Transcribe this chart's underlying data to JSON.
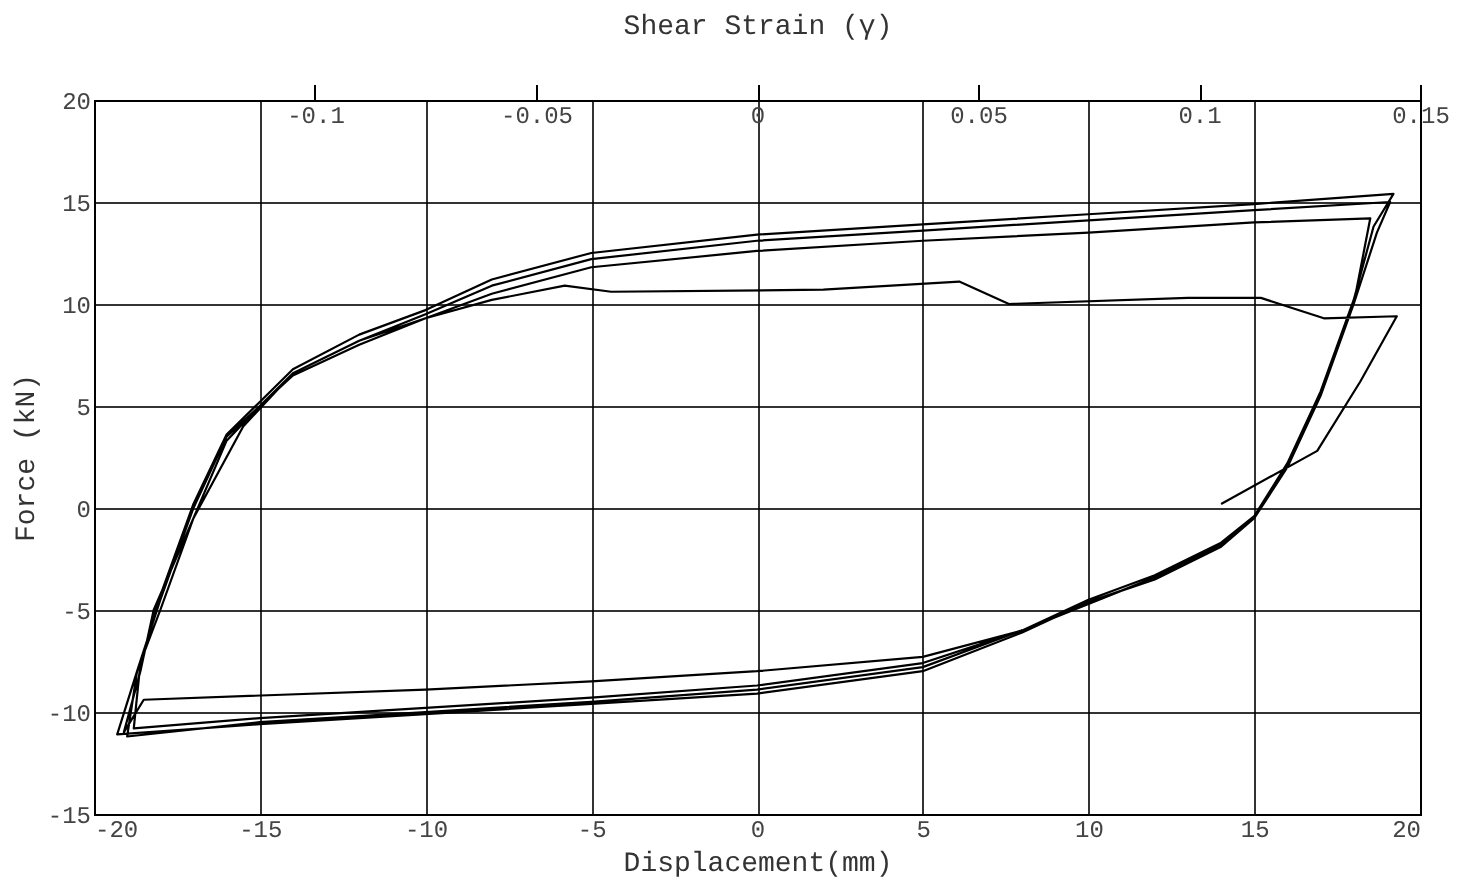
{
  "chart_data": {
    "type": "line",
    "xlabel": "Displacement(mm)",
    "ylabel": "Force (kN)",
    "x2label": "Shear Strain (γ)",
    "xlim": [
      -20,
      20
    ],
    "xticks": [
      -20,
      -15,
      -10,
      -5,
      0,
      5,
      10,
      15,
      20
    ],
    "ylim": [
      -15,
      20
    ],
    "yticks": [
      -15,
      -10,
      -5,
      0,
      5,
      10,
      15,
      20
    ],
    "x2lim": [
      -0.15,
      0.15
    ],
    "x2ticks": [
      -0.1,
      -0.05,
      0,
      0.05,
      0.1,
      0.15
    ],
    "grid": true,
    "legend": false,
    "line_style": "solid",
    "marker": "none",
    "series": [
      {
        "color": "#000000",
        "x": [
          14,
          16.9,
          18.2,
          19.3,
          17.1,
          15.2,
          13,
          7.6,
          6.1,
          2,
          -4.4,
          -5.8,
          -8,
          -10,
          -12,
          -14,
          -15.5,
          -17,
          -18.2,
          -18.6,
          -19.1,
          -18.5,
          -10,
          -5,
          0,
          5,
          8,
          10,
          12,
          14,
          15,
          16,
          17,
          18,
          18.5,
          15,
          10,
          5,
          0,
          -5,
          -8,
          -10,
          -12,
          -14,
          -15,
          -16,
          -17,
          -18,
          -18.7,
          -19.3,
          -15,
          -10,
          -5,
          0,
          5,
          8,
          10,
          12,
          14,
          15,
          16,
          17,
          18,
          18.7,
          19.1,
          15,
          10,
          5,
          0,
          -5,
          -8,
          -10,
          -12,
          -14,
          -15,
          -16,
          -17,
          -18,
          -18.7,
          -19,
          -15,
          -10,
          -5,
          0,
          5,
          8,
          10,
          12,
          14,
          15,
          16,
          17,
          18,
          18.6,
          19.2,
          15,
          10,
          5,
          0,
          -5,
          -8,
          -10,
          -12,
          -14,
          -15,
          -16,
          -17,
          -18,
          -18.6,
          -18.8,
          -15,
          -10,
          -5,
          0,
          5,
          8
        ],
        "values": [
          0.2,
          2.8,
          6.2,
          9.4,
          9.3,
          10.3,
          10.3,
          10.0,
          11.1,
          10.7,
          10.6,
          10.9,
          10.2,
          9.3,
          8.2,
          6.6,
          4,
          -0.5,
          -5,
          -8,
          -11,
          -9.4,
          -8.9,
          -8.5,
          -8.0,
          -7.3,
          -6,
          -4.7,
          -3.4,
          -1.8,
          -0.5,
          2,
          5.5,
          10,
          14.2,
          14,
          13.5,
          13.1,
          12.6,
          11.8,
          10.5,
          9.3,
          8,
          6.5,
          5,
          3.3,
          -0.5,
          -5,
          -8,
          -11.1,
          -10.6,
          -10.1,
          -9.6,
          -9.1,
          -8,
          -6.1,
          -4.6,
          -3.5,
          -1.9,
          -0.5,
          2,
          5.5,
          10,
          13.5,
          15.0,
          14.6,
          14.1,
          13.6,
          13.1,
          12.2,
          10.9,
          9.5,
          8.2,
          6.6,
          5,
          3.5,
          0,
          -4.5,
          -8,
          -11.2,
          -10.5,
          -10,
          -9.5,
          -8.9,
          -7.8,
          -6,
          -4.5,
          -3.3,
          -1.7,
          -0.4,
          2.2,
          5.7,
          10.2,
          13.8,
          15.4,
          14.9,
          14.4,
          13.9,
          13.4,
          12.5,
          11.2,
          9.7,
          8.5,
          6.8,
          5.2,
          3.6,
          0.2,
          -4.3,
          -7.6,
          -10.8,
          -10.3,
          -9.8,
          -9.3,
          -8.7,
          -7.6,
          -6
        ]
      }
    ]
  }
}
